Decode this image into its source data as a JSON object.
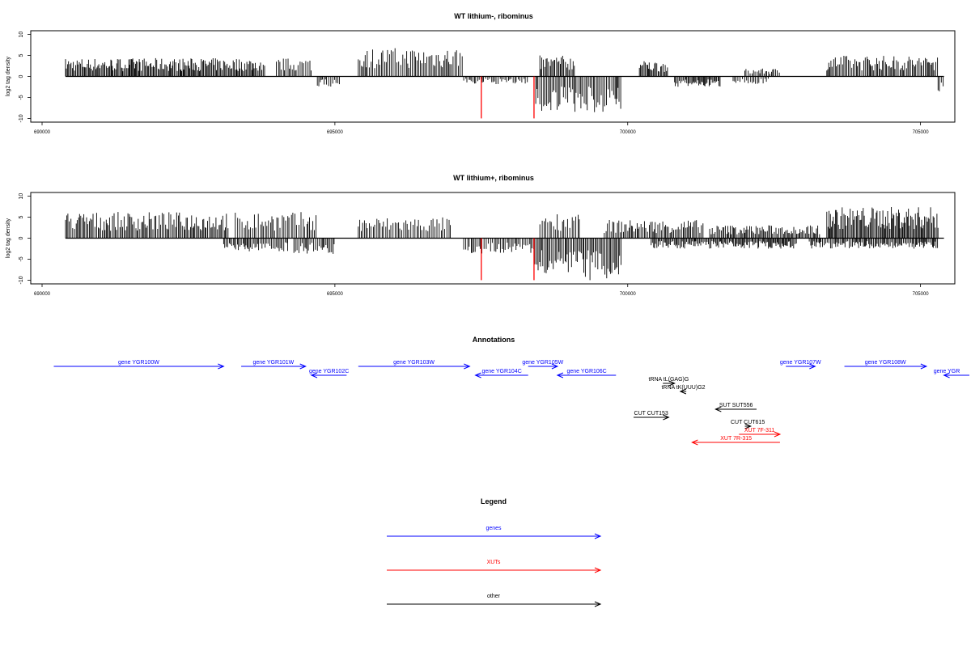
{
  "chart_data": [
    {
      "type": "bar",
      "title": "WT lithium-, ribominus",
      "ylabel": "log2 tag density",
      "xlim": [
        690000,
        706000
      ],
      "ylim": [
        -10.5,
        10.5
      ],
      "x_ticks": [
        690000,
        695000,
        700000,
        705000
      ],
      "y_ticks": [
        -10,
        -5,
        0,
        5,
        10
      ],
      "profile": {
        "plus": [
          {
            "start": 690400,
            "end": 693800,
            "level": 3.5
          },
          {
            "start": 694000,
            "end": 694600,
            "level": 3.5
          },
          {
            "start": 695400,
            "end": 697200,
            "level": 5.5
          },
          {
            "start": 698500,
            "end": 699100,
            "level": 4
          },
          {
            "start": 700200,
            "end": 700700,
            "level": 3
          },
          {
            "start": 702000,
            "end": 702600,
            "level": 1.5
          },
          {
            "start": 703400,
            "end": 705300,
            "level": 4
          }
        ],
        "minus": [
          {
            "start": 694700,
            "end": 695100,
            "level": 2
          },
          {
            "start": 697200,
            "end": 698300,
            "level": 1.5
          },
          {
            "start": 698400,
            "end": 699900,
            "level": 7
          },
          {
            "start": 700800,
            "end": 701600,
            "level": 2
          },
          {
            "start": 701800,
            "end": 702400,
            "level": 1.5
          },
          {
            "start": 705300,
            "end": 705400,
            "level": 4
          }
        ]
      },
      "red_marks": [
        {
          "x": 697500,
          "y": -10
        },
        {
          "x": 698400,
          "y": -10
        }
      ]
    },
    {
      "type": "bar",
      "title": "WT lithium+, ribominus",
      "ylabel": "log2 tag density",
      "xlim": [
        690000,
        706000
      ],
      "ylim": [
        -10.5,
        10.5
      ],
      "x_ticks": [
        690000,
        695000,
        700000,
        705000
      ],
      "y_ticks": [
        -10,
        -5,
        0,
        5,
        10
      ],
      "profile": {
        "plus": [
          {
            "start": 690400,
            "end": 693200,
            "level": 5
          },
          {
            "start": 693300,
            "end": 694700,
            "level": 5
          },
          {
            "start": 695400,
            "end": 697000,
            "level": 4
          },
          {
            "start": 698500,
            "end": 699200,
            "level": 5
          },
          {
            "start": 699600,
            "end": 701300,
            "level": 3.5
          },
          {
            "start": 701400,
            "end": 703300,
            "level": 2.5
          },
          {
            "start": 703400,
            "end": 705300,
            "level": 6
          }
        ],
        "minus": [
          {
            "start": 693100,
            "end": 694200,
            "level": 2.5
          },
          {
            "start": 694300,
            "end": 695000,
            "level": 3
          },
          {
            "start": 697200,
            "end": 698400,
            "level": 3
          },
          {
            "start": 698400,
            "end": 699900,
            "level": 8
          },
          {
            "start": 700400,
            "end": 702900,
            "level": 2
          },
          {
            "start": 703100,
            "end": 705300,
            "level": 2
          }
        ]
      },
      "red_marks": [
        {
          "x": 697500,
          "y": -10
        },
        {
          "x": 698400,
          "y": -10
        }
      ]
    }
  ],
  "annotations": {
    "title": "Annotations",
    "items": [
      {
        "label": "gene YGR100W",
        "start": 690200,
        "end": 693100,
        "strand": "+",
        "color": "#0000ff",
        "row": 0
      },
      {
        "label": "gene YGR101W",
        "start": 693400,
        "end": 694500,
        "strand": "+",
        "color": "#0000ff",
        "row": 0
      },
      {
        "label": "gene YGR102C",
        "start": 694600,
        "end": 695200,
        "strand": "-",
        "color": "#0000ff",
        "row": 1
      },
      {
        "label": "gene YGR103W",
        "start": 695400,
        "end": 697300,
        "strand": "+",
        "color": "#0000ff",
        "row": 0
      },
      {
        "label": "gene YGR104C",
        "start": 697400,
        "end": 698300,
        "strand": "-",
        "color": "#0000ff",
        "row": 1
      },
      {
        "label": "gene YGR105W",
        "start": 698300,
        "end": 698800,
        "strand": "+",
        "color": "#0000ff",
        "row": 0
      },
      {
        "label": "gene YGR106C",
        "start": 698800,
        "end": 699800,
        "strand": "-",
        "color": "#0000ff",
        "row": 1
      },
      {
        "label": "tRNA tL(GAG)G",
        "start": 700600,
        "end": 700800,
        "strand": "+",
        "color": "#000000",
        "row": 2
      },
      {
        "label": "tRNA tK(UUU)G2",
        "start": 700900,
        "end": 701000,
        "strand": "-",
        "color": "#000000",
        "row": 3
      },
      {
        "label": "SUT SUT556",
        "start": 701500,
        "end": 702200,
        "strand": "-",
        "color": "#000000",
        "row": 4
      },
      {
        "label": "CUT CUT153",
        "start": 700100,
        "end": 700700,
        "strand": "+",
        "color": "#000000",
        "row": 5
      },
      {
        "label": "CUT CUT615",
        "start": 702000,
        "end": 702100,
        "strand": "+",
        "color": "#000000",
        "row": 6
      },
      {
        "label": "XUT 7F-311",
        "start": 701900,
        "end": 702600,
        "strand": "+",
        "color": "#ff0000",
        "row": 7
      },
      {
        "label": "XUT 7R-315",
        "start": 701100,
        "end": 702600,
        "strand": "-",
        "color": "#ff0000",
        "row": 8
      },
      {
        "label": "gene YGR107W",
        "start": 702700,
        "end": 703200,
        "strand": "+",
        "color": "#0000ff",
        "row": 0
      },
      {
        "label": "gene YGR108W",
        "start": 703700,
        "end": 705100,
        "strand": "+",
        "color": "#0000ff",
        "row": 0
      },
      {
        "label": "gene YGR",
        "start": 705400,
        "end": 706100,
        "strand": "-",
        "color": "#0000ff",
        "row": 1
      }
    ]
  },
  "legend": {
    "title": "Legend",
    "entries": [
      {
        "label": "genes",
        "color": "#0000ff"
      },
      {
        "label": "XUTs",
        "color": "#ff0000"
      },
      {
        "label": "other",
        "color": "#000000"
      }
    ]
  }
}
